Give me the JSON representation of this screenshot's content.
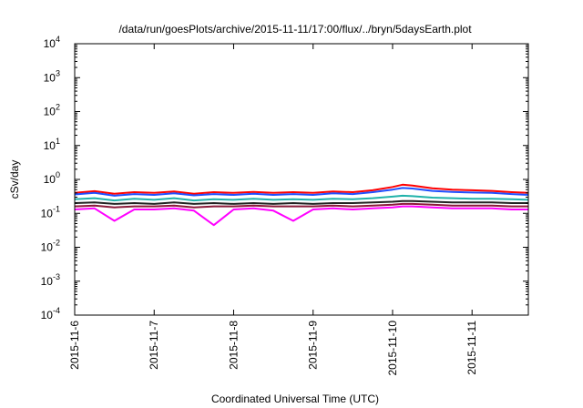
{
  "chart_data": {
    "type": "line",
    "title": "/data/run/goesPlots/archive/2015-11-11/17:00/flux/../bryn/5daysEarth.plot",
    "xlabel": "Coordinated Universal Time (UTC)",
    "ylabel": "cSv/day",
    "yscale": "log",
    "ylim": [
      0.0001,
      10000
    ],
    "yticks": [
      {
        "base": "10",
        "exp": "4",
        "value": 10000
      },
      {
        "base": "10",
        "exp": "3",
        "value": 1000
      },
      {
        "base": "10",
        "exp": "2",
        "value": 100
      },
      {
        "base": "10",
        "exp": "1",
        "value": 10
      },
      {
        "base": "10",
        "exp": "0",
        "value": 1
      },
      {
        "base": "10",
        "exp": "-1",
        "value": 0.1
      },
      {
        "base": "10",
        "exp": "-2",
        "value": 0.01
      },
      {
        "base": "10",
        "exp": "-3",
        "value": 0.001
      },
      {
        "base": "10",
        "exp": "-4",
        "value": 0.0001
      }
    ],
    "xlim": [
      "2015-11-06",
      "2015-11-11T17:00"
    ],
    "xticks": [
      "2015-11-6",
      "2015-11-7",
      "2015-11-8",
      "2015-11-9",
      "2015-11-10",
      "2015-11-11"
    ],
    "grid": false,
    "series": [
      {
        "color": "#ff0000",
        "x": [
          "2015-11-06T00:00",
          "2015-11-06T06:00",
          "2015-11-06T12:00",
          "2015-11-06T18:00",
          "2015-11-07T00:00",
          "2015-11-07T06:00",
          "2015-11-07T12:00",
          "2015-11-07T18:00",
          "2015-11-08T00:00",
          "2015-11-08T06:00",
          "2015-11-08T12:00",
          "2015-11-08T18:00",
          "2015-11-09T00:00",
          "2015-11-09T06:00",
          "2015-11-09T12:00",
          "2015-11-09T18:00",
          "2015-11-10T00:00",
          "2015-11-10T03:00",
          "2015-11-10T06:00",
          "2015-11-10T12:00",
          "2015-11-10T18:00",
          "2015-11-11T00:00",
          "2015-11-11T06:00",
          "2015-11-11T12:00",
          "2015-11-11T17:00"
        ],
        "values": [
          0.4,
          0.45,
          0.38,
          0.42,
          0.4,
          0.44,
          0.38,
          0.42,
          0.4,
          0.43,
          0.4,
          0.42,
          0.4,
          0.44,
          0.42,
          0.48,
          0.6,
          0.7,
          0.66,
          0.55,
          0.5,
          0.48,
          0.46,
          0.42,
          0.4
        ]
      },
      {
        "color": "#1f4fff",
        "x": [
          "2015-11-06T00:00",
          "2015-11-06T06:00",
          "2015-11-06T12:00",
          "2015-11-06T18:00",
          "2015-11-07T00:00",
          "2015-11-07T06:00",
          "2015-11-07T12:00",
          "2015-11-07T18:00",
          "2015-11-08T00:00",
          "2015-11-08T06:00",
          "2015-11-08T12:00",
          "2015-11-08T18:00",
          "2015-11-09T00:00",
          "2015-11-09T06:00",
          "2015-11-09T12:00",
          "2015-11-09T18:00",
          "2015-11-10T00:00",
          "2015-11-10T03:00",
          "2015-11-10T06:00",
          "2015-11-10T12:00",
          "2015-11-10T18:00",
          "2015-11-11T00:00",
          "2015-11-11T06:00",
          "2015-11-11T12:00",
          "2015-11-11T17:00"
        ],
        "values": [
          0.36,
          0.4,
          0.33,
          0.37,
          0.35,
          0.39,
          0.34,
          0.37,
          0.35,
          0.38,
          0.35,
          0.37,
          0.35,
          0.39,
          0.37,
          0.42,
          0.5,
          0.56,
          0.54,
          0.46,
          0.43,
          0.41,
          0.4,
          0.37,
          0.35
        ]
      },
      {
        "color": "#20b2aa",
        "x": [
          "2015-11-06T00:00",
          "2015-11-06T06:00",
          "2015-11-06T12:00",
          "2015-11-06T18:00",
          "2015-11-07T00:00",
          "2015-11-07T06:00",
          "2015-11-07T12:00",
          "2015-11-07T18:00",
          "2015-11-08T00:00",
          "2015-11-08T06:00",
          "2015-11-08T12:00",
          "2015-11-08T18:00",
          "2015-11-09T00:00",
          "2015-11-09T06:00",
          "2015-11-09T12:00",
          "2015-11-09T18:00",
          "2015-11-10T00:00",
          "2015-11-10T03:00",
          "2015-11-10T06:00",
          "2015-11-10T12:00",
          "2015-11-10T18:00",
          "2015-11-11T00:00",
          "2015-11-11T06:00",
          "2015-11-11T12:00",
          "2015-11-11T17:00"
        ],
        "values": [
          0.26,
          0.28,
          0.24,
          0.27,
          0.25,
          0.28,
          0.24,
          0.26,
          0.25,
          0.27,
          0.25,
          0.26,
          0.25,
          0.27,
          0.26,
          0.28,
          0.31,
          0.33,
          0.32,
          0.29,
          0.28,
          0.27,
          0.27,
          0.26,
          0.25
        ]
      },
      {
        "color": "#222222",
        "x": [
          "2015-11-06T00:00",
          "2015-11-06T06:00",
          "2015-11-06T12:00",
          "2015-11-06T18:00",
          "2015-11-07T00:00",
          "2015-11-07T06:00",
          "2015-11-07T12:00",
          "2015-11-07T18:00",
          "2015-11-08T00:00",
          "2015-11-08T06:00",
          "2015-11-08T12:00",
          "2015-11-08T18:00",
          "2015-11-09T00:00",
          "2015-11-09T06:00",
          "2015-11-09T12:00",
          "2015-11-09T18:00",
          "2015-11-10T00:00",
          "2015-11-10T03:00",
          "2015-11-10T06:00",
          "2015-11-10T12:00",
          "2015-11-10T18:00",
          "2015-11-11T00:00",
          "2015-11-11T06:00",
          "2015-11-11T12:00",
          "2015-11-11T17:00"
        ],
        "values": [
          0.2,
          0.21,
          0.19,
          0.2,
          0.19,
          0.21,
          0.19,
          0.2,
          0.19,
          0.2,
          0.19,
          0.2,
          0.19,
          0.2,
          0.2,
          0.21,
          0.22,
          0.23,
          0.23,
          0.22,
          0.21,
          0.21,
          0.21,
          0.2,
          0.2
        ]
      },
      {
        "color": "#8b1a3a",
        "x": [
          "2015-11-06T00:00",
          "2015-11-06T06:00",
          "2015-11-06T12:00",
          "2015-11-06T18:00",
          "2015-11-07T00:00",
          "2015-11-07T06:00",
          "2015-11-07T12:00",
          "2015-11-07T18:00",
          "2015-11-08T00:00",
          "2015-11-08T06:00",
          "2015-11-08T12:00",
          "2015-11-08T18:00",
          "2015-11-09T00:00",
          "2015-11-09T06:00",
          "2015-11-09T12:00",
          "2015-11-09T18:00",
          "2015-11-10T00:00",
          "2015-11-10T03:00",
          "2015-11-10T06:00",
          "2015-11-10T12:00",
          "2015-11-10T18:00",
          "2015-11-11T00:00",
          "2015-11-11T06:00",
          "2015-11-11T12:00",
          "2015-11-11T17:00"
        ],
        "values": [
          0.16,
          0.17,
          0.15,
          0.16,
          0.16,
          0.17,
          0.15,
          0.16,
          0.16,
          0.17,
          0.16,
          0.16,
          0.16,
          0.17,
          0.16,
          0.17,
          0.18,
          0.19,
          0.19,
          0.18,
          0.17,
          0.17,
          0.17,
          0.16,
          0.16
        ]
      },
      {
        "color": "#ff00ff",
        "x": [
          "2015-11-06T00:00",
          "2015-11-06T06:00",
          "2015-11-06T12:00",
          "2015-11-06T18:00",
          "2015-11-07T00:00",
          "2015-11-07T06:00",
          "2015-11-07T12:00",
          "2015-11-07T18:00",
          "2015-11-08T00:00",
          "2015-11-08T06:00",
          "2015-11-08T12:00",
          "2015-11-08T18:00",
          "2015-11-09T00:00",
          "2015-11-09T06:00",
          "2015-11-09T12:00",
          "2015-11-09T18:00",
          "2015-11-10T00:00",
          "2015-11-10T03:00",
          "2015-11-10T06:00",
          "2015-11-10T12:00",
          "2015-11-10T18:00",
          "2015-11-11T00:00",
          "2015-11-11T06:00",
          "2015-11-11T12:00",
          "2015-11-11T17:00"
        ],
        "values": [
          0.13,
          0.14,
          0.06,
          0.13,
          0.13,
          0.14,
          0.12,
          0.045,
          0.13,
          0.14,
          0.12,
          0.06,
          0.13,
          0.14,
          0.13,
          0.14,
          0.15,
          0.16,
          0.16,
          0.15,
          0.14,
          0.14,
          0.14,
          0.13,
          0.13
        ]
      }
    ]
  }
}
